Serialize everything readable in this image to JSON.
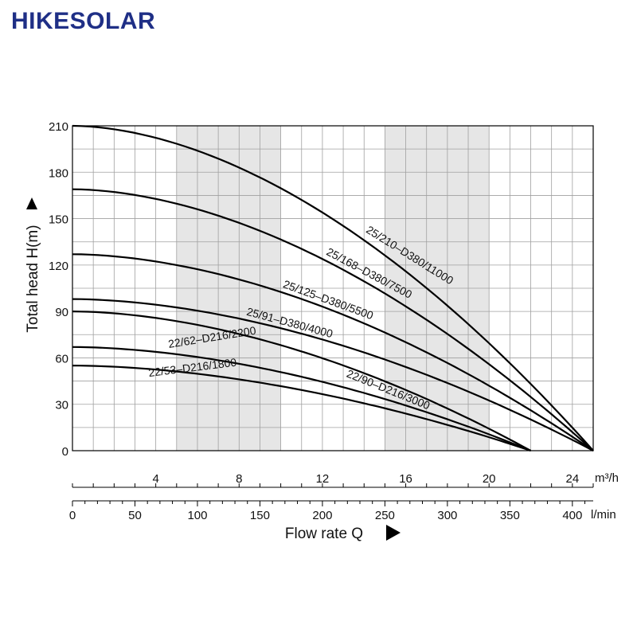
{
  "brand": {
    "name": "HIKESOLAR",
    "color": "#1f2f86"
  },
  "chart_data": {
    "type": "line",
    "ylabel": "Total head H(m)",
    "xlabel": "Flow rate Q",
    "ylim": [
      0,
      210
    ],
    "y_ticks": [
      0,
      30,
      60,
      90,
      120,
      150,
      180,
      210
    ],
    "x_m3h_ticks": [
      4,
      8,
      12,
      16,
      20,
      24
    ],
    "x_m3h_unit": "m³/h",
    "x_lmin_ticks": [
      0,
      50,
      100,
      150,
      200,
      250,
      300,
      350,
      400
    ],
    "x_lmin_unit": "l/min",
    "xlim_m3h": [
      0,
      25
    ],
    "grid": true,
    "shaded_bands_m3h": [
      [
        5,
        10
      ],
      [
        15,
        20
      ]
    ],
    "colors": {
      "curve": "#000000",
      "grid": "#a0a0a0",
      "band": "#e6e6e6",
      "brand": "#1f2f86"
    },
    "series": [
      {
        "name": "25/210–D380/11000",
        "shutoff_head": 210,
        "max_flow_m3h": 25,
        "label_angle": 32
      },
      {
        "name": "25/168–D380/7500",
        "shutoff_head": 169,
        "max_flow_m3h": 25,
        "label_angle": 28
      },
      {
        "name": "25/125–D380/5500",
        "shutoff_head": 127,
        "max_flow_m3h": 25,
        "label_angle": 20
      },
      {
        "name": "25/91–D380/4000",
        "shutoff_head": 98,
        "max_flow_m3h": 25,
        "label_angle": 15
      },
      {
        "name": "22/90–D216/3000",
        "shutoff_head": 90,
        "max_flow_m3h": 22,
        "label_angle": 22
      },
      {
        "name": "22/62–D216/2200",
        "shutoff_head": 67,
        "max_flow_m3h": 22,
        "label_angle": -9
      },
      {
        "name": "22/53–D216/1800",
        "shutoff_head": 55,
        "max_flow_m3h": 22,
        "label_angle": -7
      }
    ]
  }
}
